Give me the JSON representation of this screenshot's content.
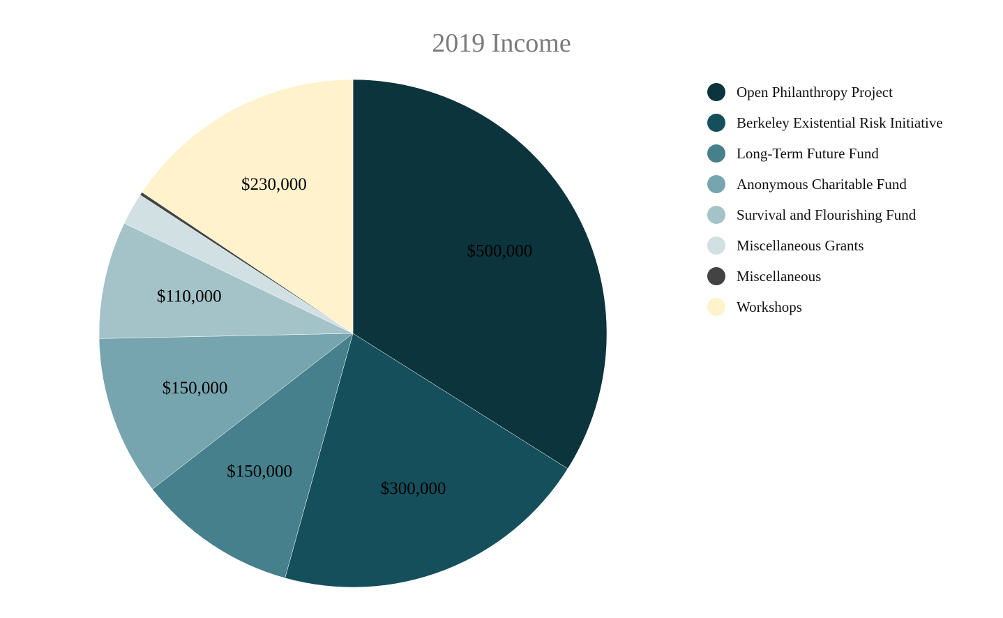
{
  "chart_data": {
    "type": "pie",
    "title": "2019 Income",
    "slices": [
      {
        "name": "Open Philanthropy Project",
        "value": 500000,
        "label": "$500,000",
        "color": "#0c343d"
      },
      {
        "name": "Berkeley Existential Risk Initiative",
        "value": 300000,
        "label": "$300,000",
        "color": "#154f5c"
      },
      {
        "name": "Long-Term Future Fund",
        "value": 150000,
        "label": "$150,000",
        "color": "#46808c"
      },
      {
        "name": "Anonymous Charitable Fund",
        "value": 150000,
        "label": "$150,000",
        "color": "#76a5af"
      },
      {
        "name": "Survival and Flourishing Fund",
        "value": 110000,
        "label": "$110,000",
        "color": "#a4c3c8"
      },
      {
        "name": "Miscellaneous Grants",
        "value": 30000,
        "label": "",
        "color": "#d0e0e3"
      },
      {
        "name": "Miscellaneous",
        "value": 3000,
        "label": "",
        "color": "#434343"
      },
      {
        "name": "Workshops",
        "value": 230000,
        "label": "$230,000",
        "color": "#fff2cc"
      }
    ],
    "legend_position": "right",
    "start_angle": "12 o'clock",
    "direction": "clockwise"
  }
}
